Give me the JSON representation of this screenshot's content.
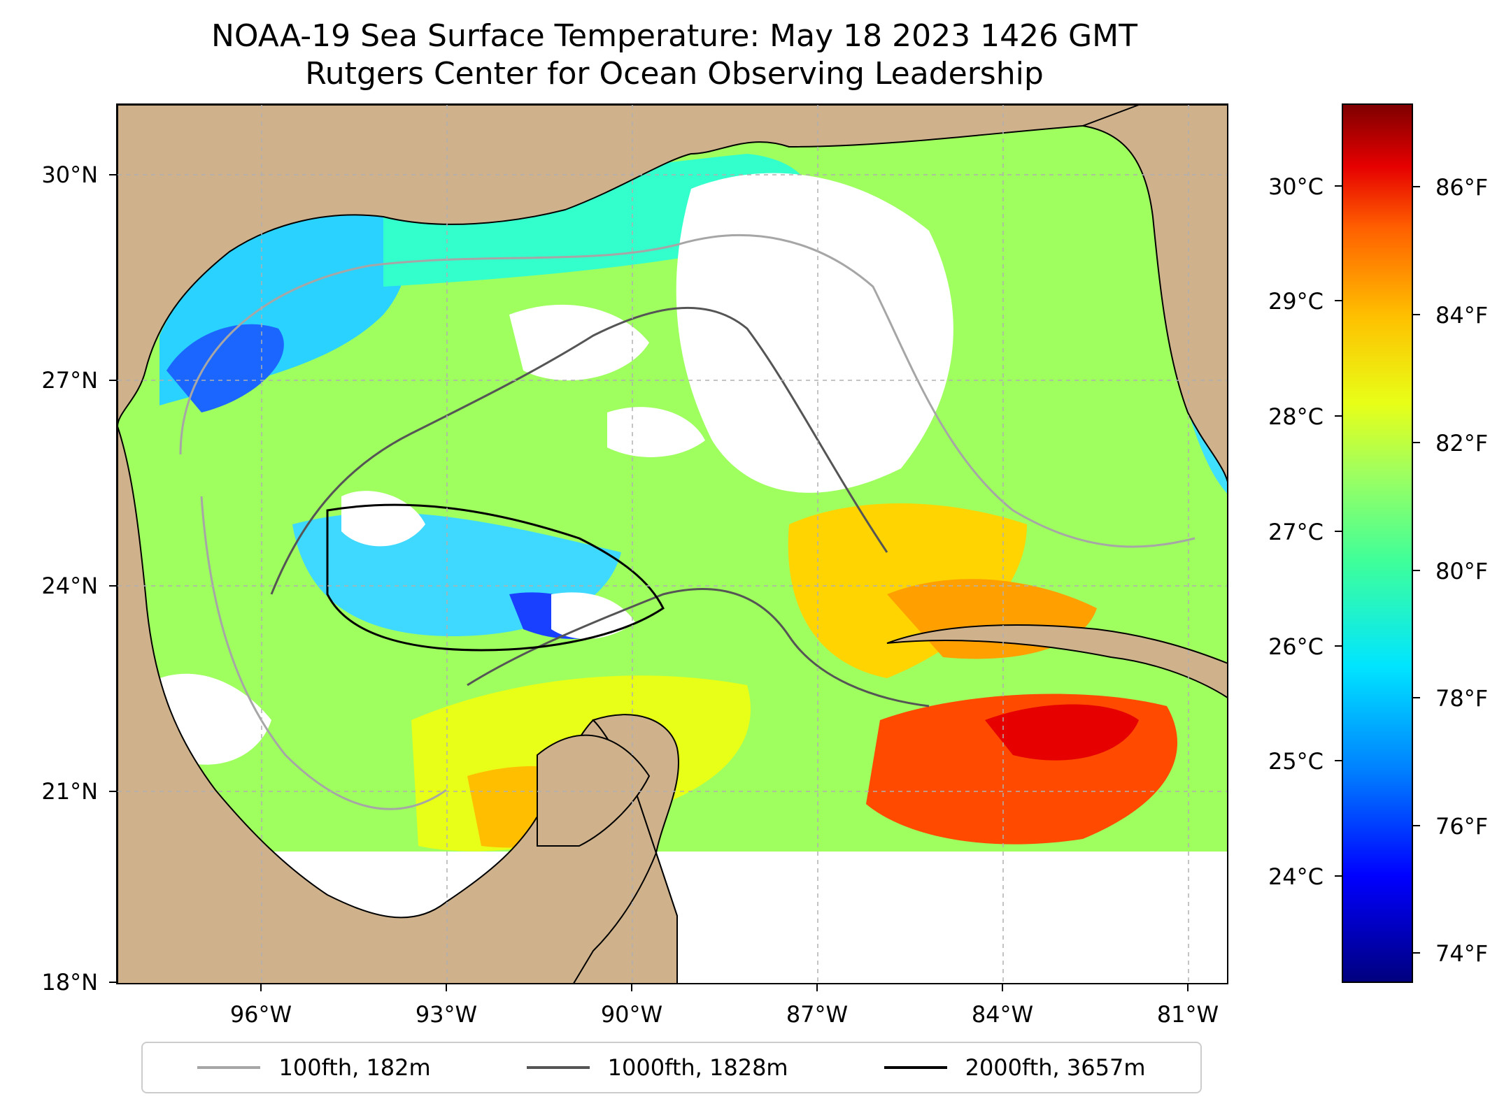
{
  "title": {
    "line1": "NOAA-19 Sea Surface Temperature: May 18 2023 1426 GMT",
    "line2": "Rutgers Center for Ocean Observing Leadership"
  },
  "map": {
    "latitude_labels": [
      "30°N",
      "27°N",
      "24°N",
      "21°N",
      "18°N"
    ],
    "longitude_labels": [
      "96°W",
      "93°W",
      "90°W",
      "87°W",
      "84°W",
      "81°W"
    ],
    "extent": {
      "lon_min": -98.3,
      "lon_max": -80.3,
      "lat_min": 18.0,
      "lat_max": 31.0
    },
    "grid": true,
    "colors": {
      "land": "#cfb28b",
      "no_data": "#ffffff",
      "gridline": "#b0b0b0"
    }
  },
  "legend": {
    "placement": "bottom-center",
    "items": [
      {
        "label": "100fth, 182m",
        "color": "#a6a6a6"
      },
      {
        "label": "1000fth, 1828m",
        "color": "#555555"
      },
      {
        "label": "2000fth, 3657m",
        "color": "#000000"
      }
    ]
  },
  "colorbar": {
    "celsius_labels": [
      "30°C",
      "29°C",
      "28°C",
      "27°C",
      "26°C",
      "25°C",
      "24°C"
    ],
    "fahrenheit_labels": [
      "86°F",
      "84°F",
      "82°F",
      "80°F",
      "78°F",
      "76°F",
      "74°F"
    ],
    "colormap": "jet",
    "range_c": [
      23.1,
      30.7
    ]
  }
}
